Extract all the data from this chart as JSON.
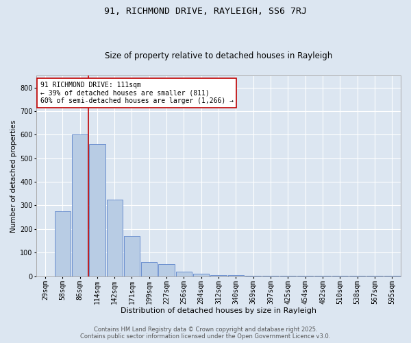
{
  "title1": "91, RICHMOND DRIVE, RAYLEIGH, SS6 7RJ",
  "title2": "Size of property relative to detached houses in Rayleigh",
  "xlabel": "Distribution of detached houses by size in Rayleigh",
  "ylabel": "Number of detached properties",
  "bins": [
    "29sqm",
    "58sqm",
    "86sqm",
    "114sqm",
    "142sqm",
    "171sqm",
    "199sqm",
    "227sqm",
    "256sqm",
    "284sqm",
    "312sqm",
    "340sqm",
    "369sqm",
    "397sqm",
    "425sqm",
    "454sqm",
    "482sqm",
    "510sqm",
    "538sqm",
    "567sqm",
    "595sqm"
  ],
  "values": [
    0,
    275,
    600,
    560,
    325,
    170,
    60,
    50,
    20,
    10,
    5,
    5,
    2,
    1,
    1,
    1,
    1,
    1,
    1,
    1,
    1
  ],
  "bar_color": "#b8cce4",
  "bar_edge_color": "#4472c4",
  "background_color": "#dce6f1",
  "vline_color": "#c00000",
  "annotation_line1": "91 RICHMOND DRIVE: 111sqm",
  "annotation_line2": "← 39% of detached houses are smaller (811)",
  "annotation_line3": "60% of semi-detached houses are larger (1,266) →",
  "annotation_box_color": "#ffffff",
  "annotation_box_edge": "#c00000",
  "ylim": [
    0,
    850
  ],
  "yticks": [
    0,
    100,
    200,
    300,
    400,
    500,
    600,
    700,
    800
  ],
  "footer1": "Contains HM Land Registry data © Crown copyright and database right 2025.",
  "footer2": "Contains public sector information licensed under the Open Government Licence v3.0.",
  "title1_fontsize": 9.5,
  "title2_fontsize": 8.5,
  "xlabel_fontsize": 8,
  "ylabel_fontsize": 7.5,
  "tick_fontsize": 7,
  "annotation_fontsize": 7,
  "footer_fontsize": 6
}
